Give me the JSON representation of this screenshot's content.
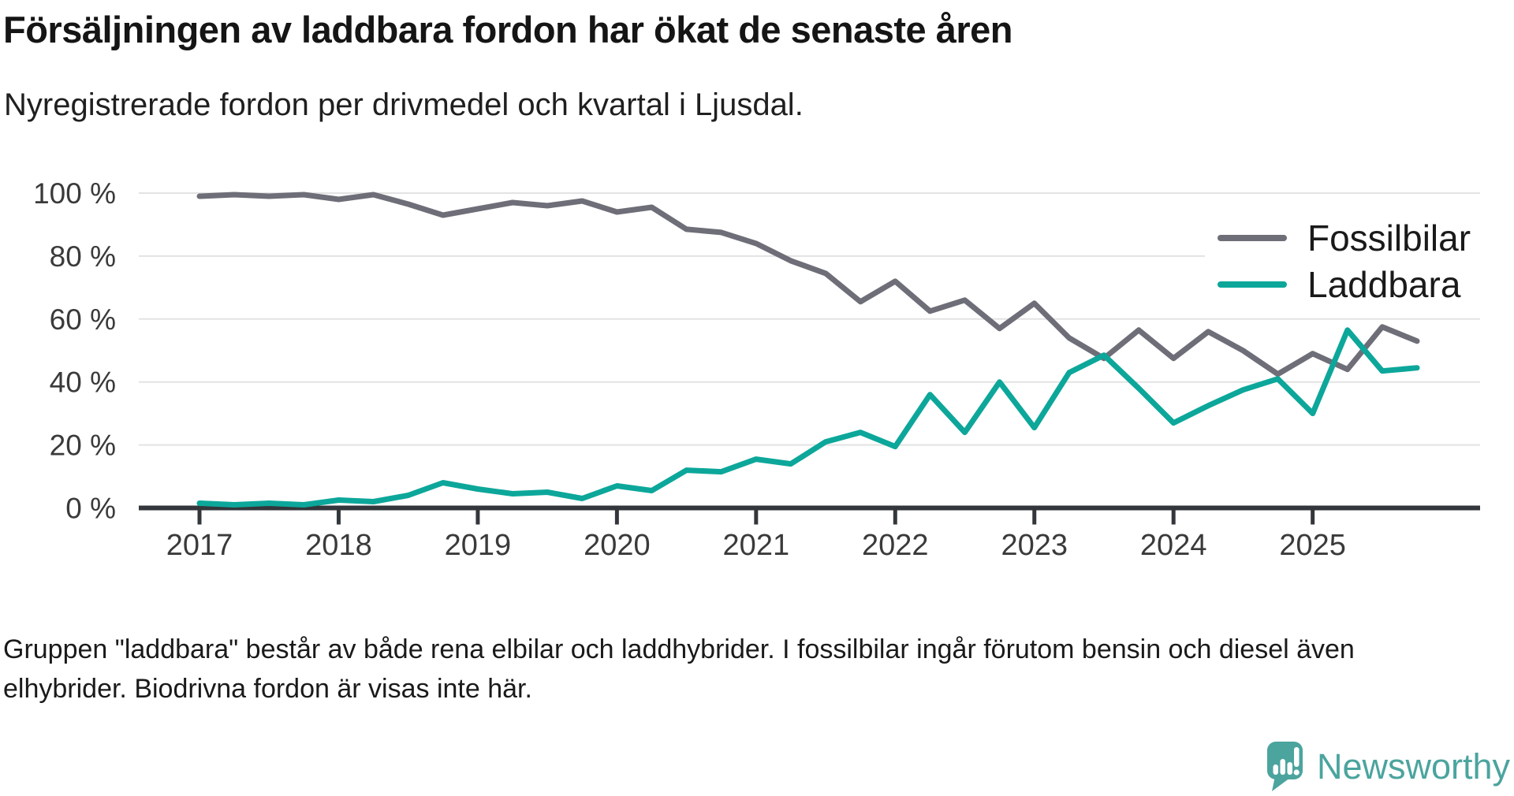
{
  "chart_data": {
    "type": "line",
    "title": "Försäljningen av laddbara fordon har ökat de senaste åren",
    "subtitle": "Nyregistrerade fordon per drivmedel och kvartal i Ljusdal.",
    "grid": "horizontal",
    "legend_position": "upper-right",
    "ylim": [
      0,
      100
    ],
    "y_ticks_values": [
      100,
      80,
      60,
      40,
      20,
      0
    ],
    "y_tick_labels": [
      "100 %",
      "80 %",
      "60 %",
      "40 %",
      "20 %",
      "0 %"
    ],
    "x_tick_labels": [
      "2017",
      "2018",
      "2019",
      "2020",
      "2021",
      "2022",
      "2023",
      "2024",
      "2025"
    ],
    "quarters": [
      "2017Q1",
      "2017Q2",
      "2017Q3",
      "2017Q4",
      "2018Q1",
      "2018Q2",
      "2018Q3",
      "2018Q4",
      "2019Q1",
      "2019Q2",
      "2019Q3",
      "2019Q4",
      "2020Q1",
      "2020Q2",
      "2020Q3",
      "2020Q4",
      "2021Q1",
      "2021Q2",
      "2021Q3",
      "2021Q4",
      "2022Q1",
      "2022Q2",
      "2022Q3",
      "2022Q4",
      "2023Q1",
      "2023Q2",
      "2023Q3",
      "2023Q4",
      "2024Q1",
      "2024Q2",
      "2024Q3",
      "2024Q4",
      "2025Q1",
      "2025Q2",
      "2025Q3",
      "2025Q4"
    ],
    "series": [
      {
        "name": "Fossilbilar",
        "color": "#6E6E78",
        "values": [
          99,
          99.5,
          99,
          99.5,
          98,
          99.5,
          96.5,
          93,
          95,
          97,
          96,
          97.5,
          94,
          95.5,
          88.5,
          87.5,
          84,
          78.5,
          74.5,
          65.5,
          72,
          62.5,
          66,
          57,
          65,
          54,
          47.5,
          56.5,
          47.5,
          56,
          50,
          42.5,
          49,
          44,
          57.5,
          53
        ]
      },
      {
        "name": "Laddbara",
        "color": "#0CA79A",
        "values": [
          1.5,
          1,
          1.5,
          1,
          2.5,
          2,
          4,
          8,
          6,
          4.5,
          5,
          3,
          7,
          5.5,
          12,
          11.5,
          15.5,
          14,
          21,
          24,
          19.5,
          36,
          24,
          40,
          25.5,
          43,
          48.5,
          38,
          27,
          32.5,
          37.5,
          41,
          30,
          56.5,
          43.5,
          44.5
        ]
      }
    ]
  },
  "footnote": {
    "text": "Gruppen \"laddbara\" består av både rena elbilar och laddhybrider. I fossilbilar ingår förutom bensin och diesel även elhybrider. Biodrivna fordon är visas inte här."
  },
  "branding": {
    "name": "Newsworthy",
    "color": "#4BA49E"
  },
  "colors": {
    "axis": "#33373B",
    "grid": "#E3E3E3",
    "tick_label": "#3A3A3A",
    "fossil": "#6E6E78",
    "laddbara": "#0CA79A"
  }
}
